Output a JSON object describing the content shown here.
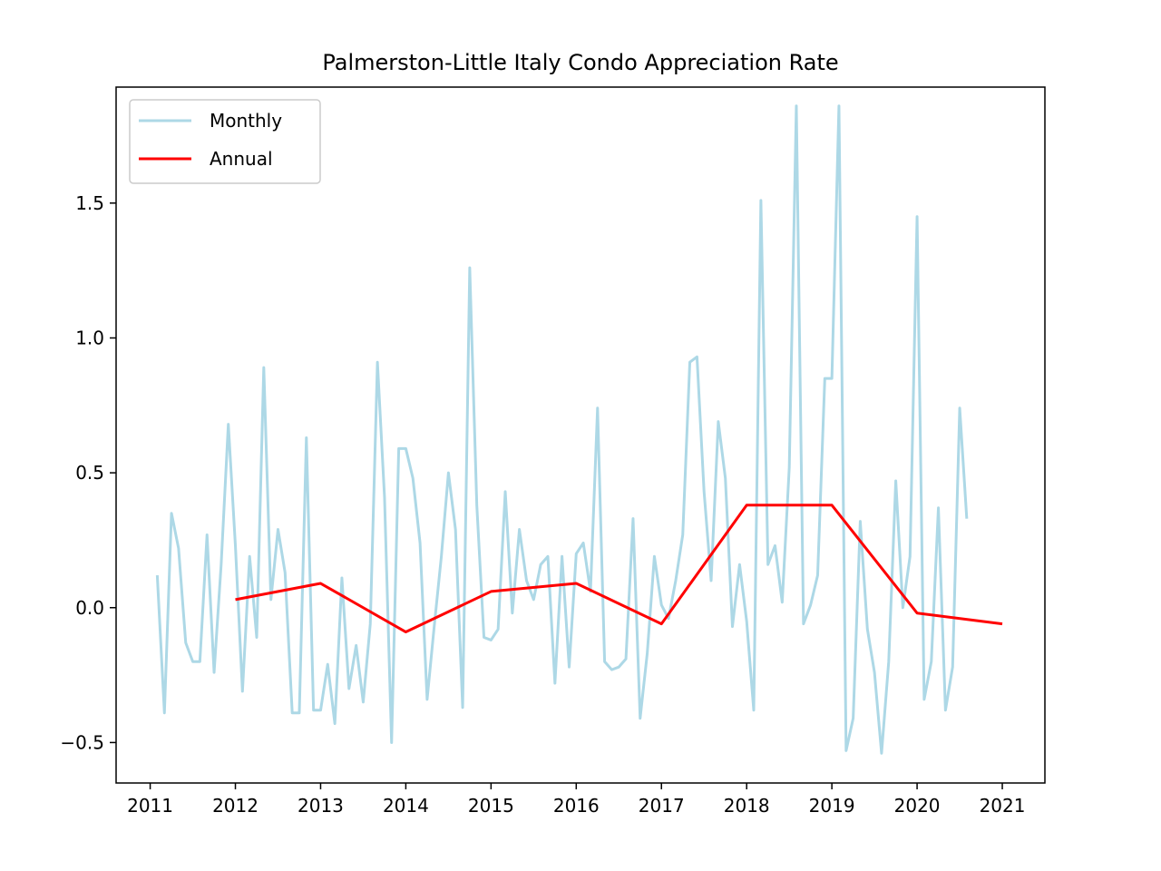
{
  "chart_data": {
    "type": "line",
    "title": "Palmerston-Little Italy Condo Appreciation Rate",
    "xlabel": "",
    "ylabel": "",
    "xlim": [
      2010.6,
      2021.5
    ],
    "ylim": [
      -0.65,
      1.93
    ],
    "x_ticks": [
      2011,
      2012,
      2013,
      2014,
      2015,
      2016,
      2017,
      2018,
      2019,
      2020,
      2021
    ],
    "x_tick_labels": [
      "2011",
      "2012",
      "2013",
      "2014",
      "2015",
      "2016",
      "2017",
      "2018",
      "2019",
      "2020",
      "2021"
    ],
    "y_ticks": [
      -0.5,
      0.0,
      0.5,
      1.0,
      1.5
    ],
    "y_tick_labels": [
      "−0.5",
      "0.0",
      "0.5",
      "1.0",
      "1.5"
    ],
    "grid": false,
    "legend_position": "top-left",
    "series": [
      {
        "name": "Monthly",
        "color": "#add8e6",
        "x": [
          2011.083,
          2011.167,
          2011.25,
          2011.333,
          2011.417,
          2011.5,
          2011.583,
          2011.667,
          2011.75,
          2011.833,
          2011.917,
          2012.0,
          2012.083,
          2012.167,
          2012.25,
          2012.333,
          2012.417,
          2012.5,
          2012.583,
          2012.667,
          2012.75,
          2012.833,
          2012.917,
          2013.0,
          2013.083,
          2013.167,
          2013.25,
          2013.333,
          2013.417,
          2013.5,
          2013.583,
          2013.667,
          2013.75,
          2013.833,
          2013.917,
          2014.0,
          2014.083,
          2014.167,
          2014.25,
          2014.333,
          2014.417,
          2014.5,
          2014.583,
          2014.667,
          2014.75,
          2014.833,
          2014.917,
          2015.0,
          2015.083,
          2015.167,
          2015.25,
          2015.333,
          2015.417,
          2015.5,
          2015.583,
          2015.667,
          2015.75,
          2015.833,
          2015.917,
          2016.0,
          2016.083,
          2016.167,
          2016.25,
          2016.333,
          2016.417,
          2016.5,
          2016.583,
          2016.667,
          2016.75,
          2016.833,
          2016.917,
          2017.0,
          2017.083,
          2017.167,
          2017.25,
          2017.333,
          2017.417,
          2017.5,
          2017.583,
          2017.667,
          2017.75,
          2017.833,
          2017.917,
          2018.0,
          2018.083,
          2018.167,
          2018.25,
          2018.333,
          2018.417,
          2018.5,
          2018.583,
          2018.667,
          2018.75,
          2018.833,
          2018.917,
          2019.0,
          2019.083,
          2019.167,
          2019.25,
          2019.333,
          2019.417,
          2019.5,
          2019.583,
          2019.667,
          2019.75,
          2019.833,
          2019.917,
          2020.0,
          2020.083,
          2020.167,
          2020.25,
          2020.333,
          2020.417,
          2020.5,
          2020.583
        ],
        "values": [
          0.12,
          -0.39,
          0.35,
          0.22,
          -0.13,
          -0.2,
          -0.2,
          0.27,
          -0.24,
          0.16,
          0.68,
          0.23,
          -0.31,
          0.19,
          -0.11,
          0.89,
          0.03,
          0.29,
          0.13,
          -0.39,
          -0.39,
          0.63,
          -0.38,
          -0.38,
          -0.21,
          -0.43,
          0.11,
          -0.3,
          -0.14,
          -0.35,
          -0.06,
          0.91,
          0.41,
          -0.5,
          0.59,
          0.59,
          0.48,
          0.24,
          -0.34,
          -0.07,
          0.19,
          0.5,
          0.29,
          -0.37,
          1.26,
          0.38,
          -0.11,
          -0.12,
          -0.08,
          0.43,
          -0.02,
          0.29,
          0.1,
          0.03,
          0.16,
          0.19,
          -0.28,
          0.19,
          -0.22,
          0.2,
          0.24,
          0.06,
          0.74,
          -0.2,
          -0.23,
          -0.22,
          -0.19,
          0.33,
          -0.41,
          -0.17,
          0.19,
          0.01,
          -0.04,
          0.1,
          0.27,
          0.91,
          0.93,
          0.43,
          0.1,
          0.69,
          0.48,
          -0.07,
          0.16,
          -0.05,
          -0.38,
          1.51,
          0.16,
          0.23,
          0.02,
          0.52,
          1.86,
          -0.06,
          0.01,
          0.12,
          0.85,
          0.85,
          1.86,
          -0.53,
          -0.41,
          0.32,
          -0.08,
          -0.24,
          -0.54,
          -0.2,
          0.47,
          0.0,
          0.19,
          1.45,
          -0.34,
          -0.2,
          0.37,
          -0.38,
          -0.22,
          0.74,
          0.33
        ]
      },
      {
        "name": "Annual",
        "color": "#ff0000",
        "x": [
          2012,
          2013,
          2014,
          2015,
          2016,
          2017,
          2018,
          2019,
          2020,
          2021
        ],
        "values": [
          0.03,
          0.09,
          -0.09,
          0.06,
          0.09,
          -0.06,
          0.38,
          0.38,
          -0.02,
          -0.06
        ]
      }
    ]
  }
}
